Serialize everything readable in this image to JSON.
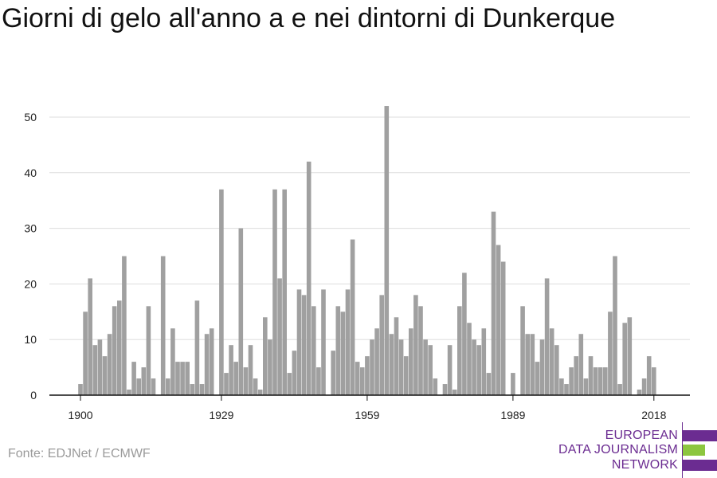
{
  "title": "Giorni di gelo all'anno a e nei dintorni di Dunkerque",
  "source": "Fonte: EDJNet / ECMWF",
  "logo": {
    "line1": "EUROPEAN",
    "line2": "DATA JOURNALISM",
    "line3": "NETWORK",
    "colors": {
      "purple": "#6b2c91",
      "green": "#8cc63f"
    }
  },
  "colors": {
    "bar": "#a0a0a0",
    "grid": "#dddddd",
    "axis": "#111111"
  },
  "chart_data": {
    "type": "bar",
    "title": "Giorni di gelo all'anno a e nei dintorni di Dunkerque",
    "xlabel": "",
    "ylabel": "",
    "x_start": 1900,
    "x_end": 2018,
    "x_ticks": [
      1900,
      1929,
      1959,
      1989,
      2018
    ],
    "y_ticks": [
      0,
      10,
      20,
      30,
      40,
      50
    ],
    "ylim": [
      0,
      55
    ],
    "grid": true,
    "values": [
      2,
      15,
      21,
      9,
      10,
      7,
      11,
      16,
      17,
      25,
      1,
      6,
      3,
      5,
      16,
      3,
      0,
      25,
      3,
      12,
      6,
      6,
      6,
      2,
      17,
      2,
      11,
      12,
      0,
      37,
      4,
      9,
      6,
      30,
      5,
      9,
      3,
      1,
      14,
      10,
      37,
      21,
      37,
      4,
      8,
      19,
      18,
      42,
      16,
      5,
      19,
      0,
      8,
      16,
      15,
      19,
      28,
      6,
      5,
      7,
      10,
      12,
      18,
      52,
      11,
      14,
      10,
      7,
      12,
      18,
      16,
      10,
      9,
      3,
      0,
      2,
      9,
      1,
      16,
      22,
      13,
      10,
      9,
      12,
      4,
      33,
      27,
      24,
      0,
      4,
      0,
      16,
      11,
      11,
      6,
      10,
      21,
      12,
      9,
      3,
      2,
      5,
      7,
      11,
      3,
      7,
      5,
      5,
      5,
      15,
      25,
      2,
      13,
      14,
      0,
      1,
      3,
      7,
      5
    ]
  }
}
